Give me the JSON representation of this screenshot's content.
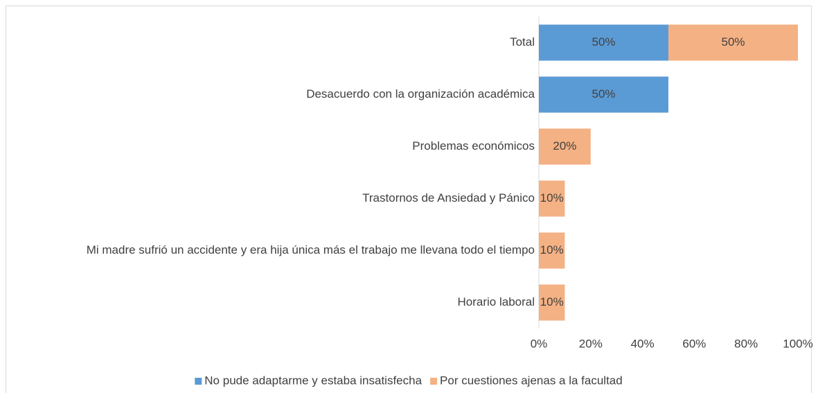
{
  "chart_data": {
    "type": "stacked-barh",
    "categories": [
      "Total",
      "Desacuerdo con la organización académica",
      "Problemas económicos",
      "Trastornos de Ansiedad y Pánico",
      "Mi madre sufrió un accidente y era hija única más el trabajo me llevana todo el tiempo",
      "Horario laboral"
    ],
    "series": [
      {
        "name": "No pude adaptarme y estaba insatisfecha",
        "color": "#5b9bd5",
        "values": [
          50,
          50,
          null,
          null,
          null,
          null
        ],
        "value_labels": [
          "50%",
          "50%",
          null,
          null,
          null,
          null
        ]
      },
      {
        "name": "Por cuestiones ajenas a la facultad",
        "color": "#f4b183",
        "values": [
          50,
          null,
          20,
          10,
          10,
          10
        ],
        "value_labels": [
          "50%",
          null,
          "20%",
          "10%",
          "10%",
          "10%"
        ]
      }
    ],
    "xlim": [
      0,
      100
    ],
    "xticks": [
      {
        "value": 0,
        "label": "0%"
      },
      {
        "value": 20,
        "label": "20%"
      },
      {
        "value": 40,
        "label": "40%"
      },
      {
        "value": 60,
        "label": "60%"
      },
      {
        "value": 80,
        "label": "80%"
      },
      {
        "value": 100,
        "label": "100%"
      }
    ],
    "legend": "bottom"
  }
}
